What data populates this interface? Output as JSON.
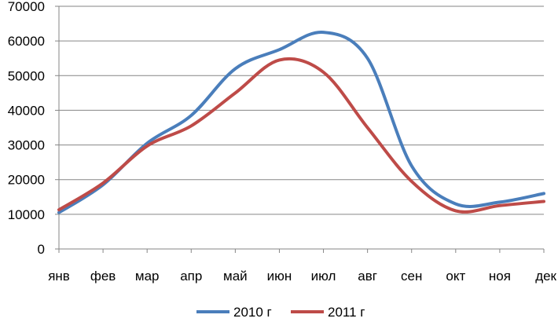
{
  "chart_data": {
    "type": "line",
    "title": "",
    "xlabel": "",
    "ylabel": "",
    "categories": [
      "янв",
      "фев",
      "мар",
      "апр",
      "май",
      "июн",
      "июл",
      "авг",
      "сен",
      "окт",
      "ноя",
      "дек"
    ],
    "ylim": [
      0,
      70000
    ],
    "yticks": [
      "0",
      "10000",
      "20000",
      "30000",
      "40000",
      "50000",
      "60000",
      "70000"
    ],
    "grid": true,
    "legend_position": "bottom",
    "series": [
      {
        "name": "2010 г",
        "color": "#4a7ebb",
        "values": [
          10500,
          18500,
          30500,
          38500,
          52000,
          57500,
          62500,
          55000,
          24000,
          13000,
          13500,
          16000
        ]
      },
      {
        "name": "2011 г",
        "color": "#be4b48",
        "values": [
          11300,
          19000,
          29700,
          35500,
          45000,
          54500,
          51000,
          35000,
          19500,
          11000,
          12500,
          13700
        ]
      }
    ]
  }
}
